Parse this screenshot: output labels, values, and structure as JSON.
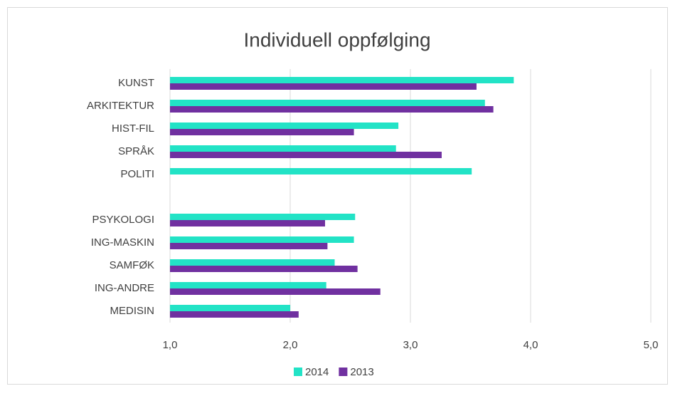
{
  "chart_data": {
    "type": "hbar",
    "title": "Individuell oppfølging",
    "categories": [
      "KUNST",
      "ARKITEKTUR",
      "HIST-FIL",
      "SPRÅK",
      "POLITI",
      null,
      "PSYKOLOGI",
      "ING-MASKIN",
      "SAMFØK",
      "ING-ANDRE",
      "MEDISIN"
    ],
    "series": [
      {
        "name": "2014",
        "color": "#22e3c6",
        "values": [
          3.86,
          3.62,
          2.9,
          2.88,
          3.51,
          null,
          2.54,
          2.53,
          2.37,
          2.3,
          2.0
        ]
      },
      {
        "name": "2013",
        "color": "#7030a0",
        "values": [
          3.55,
          3.69,
          2.53,
          3.26,
          null,
          null,
          2.29,
          2.31,
          2.56,
          2.75,
          2.07
        ]
      }
    ],
    "xlim": [
      1,
      5
    ],
    "xticks": [
      {
        "value": 1,
        "label": "1,0"
      },
      {
        "value": 2,
        "label": "2,0"
      },
      {
        "value": 3,
        "label": "3,0"
      },
      {
        "value": 4,
        "label": "4,0"
      },
      {
        "value": 5,
        "label": "5,0"
      }
    ],
    "grid": true,
    "legend": "bottom"
  }
}
